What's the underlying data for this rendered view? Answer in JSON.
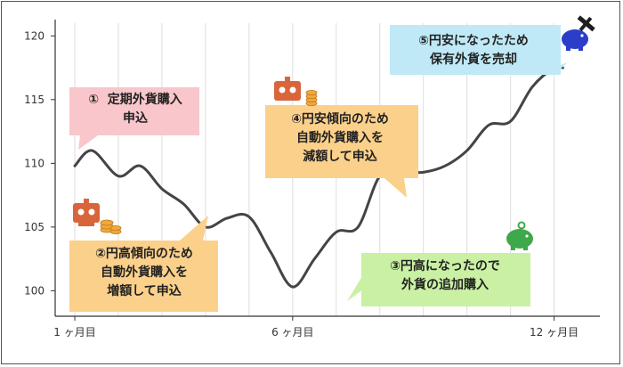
{
  "chart_data": {
    "type": "line",
    "title": "",
    "xlabel": "",
    "ylabel": "",
    "ylim": [
      98,
      121
    ],
    "yticks": [
      100,
      105,
      110,
      115,
      120
    ],
    "x_ticks": [
      {
        "month": 1,
        "label": "1 ヶ月目"
      },
      {
        "month": 6,
        "label": "6 ヶ月目"
      },
      {
        "month": 12,
        "label": "12 ヶ月目"
      }
    ],
    "grid": "vertical",
    "series": [
      {
        "color": "#444444",
        "points": [
          [
            1.0,
            109.8
          ],
          [
            1.4,
            111.0
          ],
          [
            2.0,
            109.0
          ],
          [
            2.5,
            109.8
          ],
          [
            3.0,
            108.0
          ],
          [
            3.5,
            106.8
          ],
          [
            4.0,
            105.0
          ],
          [
            4.5,
            105.7
          ],
          [
            5.0,
            105.8
          ],
          [
            5.5,
            103.0
          ],
          [
            6.0,
            100.3
          ],
          [
            6.5,
            102.5
          ],
          [
            7.0,
            104.6
          ],
          [
            7.5,
            105.0
          ],
          [
            8.0,
            109.0
          ],
          [
            8.5,
            109.3
          ],
          [
            9.0,
            109.3
          ],
          [
            9.5,
            109.8
          ],
          [
            10.0,
            111.0
          ],
          [
            10.5,
            113.0
          ],
          [
            11.0,
            113.3
          ],
          [
            11.5,
            116.0
          ],
          [
            12.0,
            117.5
          ],
          [
            12.2,
            117.5
          ]
        ]
      }
    ],
    "annotations": [
      {
        "number": "①",
        "lines": [
          "定期外貨購入",
          "申込"
        ],
        "color": "#f9c6cc"
      },
      {
        "number": "②",
        "lines": [
          "円高傾向のため",
          "自動外貨購入を",
          "増額して申込"
        ],
        "color": "#fbd08b"
      },
      {
        "number": "③",
        "lines": [
          "円高になったので",
          "外貨の追加購入"
        ],
        "color": "#c9f0a3"
      },
      {
        "number": "④",
        "lines": [
          "円安傾向のため",
          "自動外貨購入を",
          "減額して申込"
        ],
        "color": "#fbd08b"
      },
      {
        "number": "⑤",
        "lines": [
          "円安になったため",
          "保有外貨を売却"
        ],
        "color": "#bfe9f7"
      }
    ]
  },
  "icons": {
    "robot_coins_1": "robot-with-coins-icon",
    "robot_coins_2": "robot-with-coins-icon",
    "piggy_bank_green": "green-piggy-bank-icon",
    "piggy_bank_blue": "blue-piggy-bank-hammer-icon"
  }
}
